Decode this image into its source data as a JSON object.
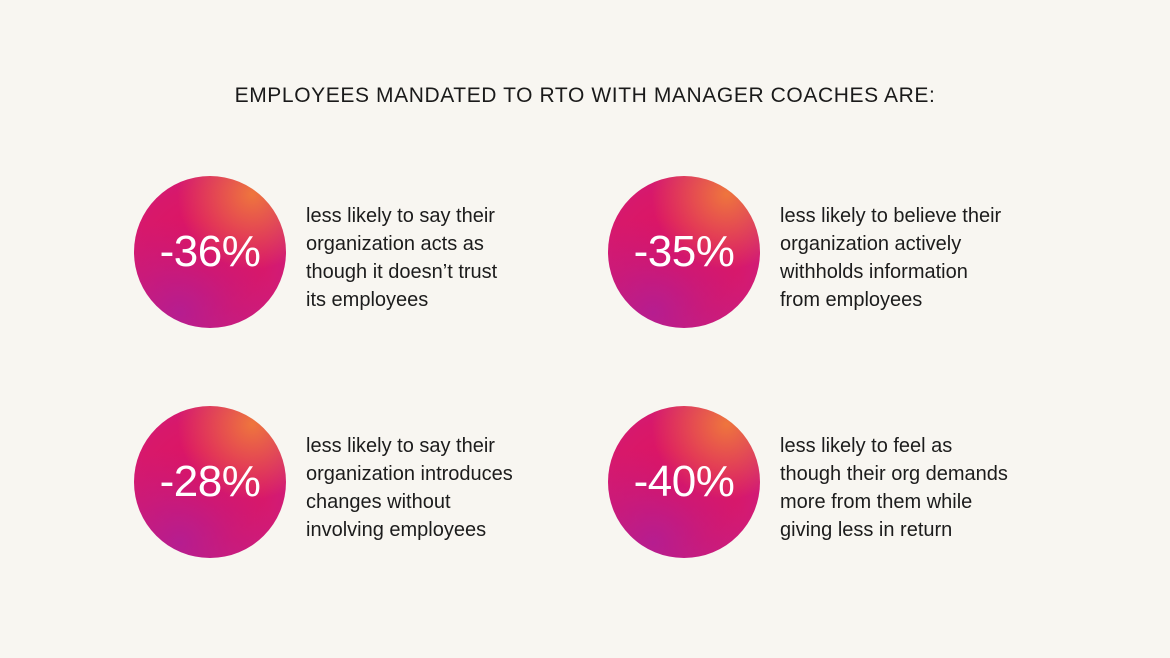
{
  "title": "EMPLOYEES MANDATED TO RTO WITH MANAGER COACHES ARE:",
  "colors": {
    "background": "#f8f6f1",
    "circle_primary": "#e0135f",
    "circle_orange": "#f07a3a",
    "circle_purple": "#c81f86",
    "text": "#1c1c1c",
    "percent_text": "#ffffff"
  },
  "stats": [
    {
      "value": "-36%",
      "lines": [
        "less likely to say their",
        "organization acts as",
        "though it doesn’t trust",
        "its employees"
      ]
    },
    {
      "value": "-35%",
      "lines": [
        "less likely to believe their",
        "organization actively",
        "withholds information",
        "from employees"
      ]
    },
    {
      "value": "-28%",
      "lines": [
        "less likely to say their",
        "organization introduces",
        "changes without",
        "involving employees"
      ]
    },
    {
      "value": "-40%",
      "lines": [
        "less likely to feel as",
        "though their org demands",
        "more from them while",
        "giving less in return"
      ]
    }
  ]
}
